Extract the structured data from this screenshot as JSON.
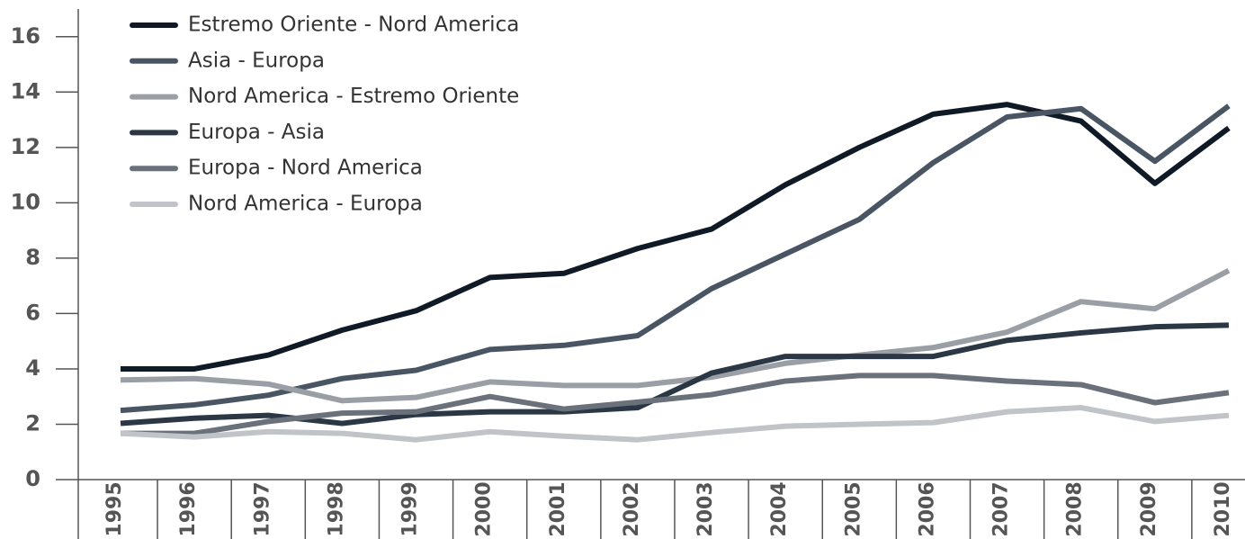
{
  "chart_data": {
    "type": "line",
    "categories": [
      "1995",
      "1996",
      "1997",
      "1998",
      "1999",
      "2000",
      "2001",
      "2002",
      "2003",
      "2004",
      "2005",
      "2006",
      "2007",
      "2008",
      "2009",
      "2010"
    ],
    "series": [
      {
        "name": "Estremo Oriente - Nord America",
        "color": "#0f1a26",
        "values": [
          4.0,
          4.0,
          4.5,
          5.4,
          6.1,
          7.3,
          7.45,
          8.35,
          9.05,
          10.65,
          12.0,
          13.2,
          13.55,
          12.95,
          10.7,
          12.7
        ]
      },
      {
        "name": "Asia - Europa",
        "color": "#4a5563",
        "values": [
          2.5,
          2.7,
          3.05,
          3.65,
          3.95,
          4.7,
          4.85,
          5.2,
          6.9,
          8.15,
          9.4,
          11.45,
          13.1,
          13.4,
          11.5,
          13.5
        ]
      },
      {
        "name": "Nord America - Estremo Oriente",
        "color": "#9a9fa5",
        "values": [
          3.6,
          3.65,
          3.45,
          2.85,
          2.97,
          3.53,
          3.4,
          3.4,
          3.7,
          4.2,
          4.5,
          4.77,
          5.33,
          6.43,
          6.17,
          7.55
        ]
      },
      {
        "name": "Europa - Asia",
        "color": "#2b3744",
        "values": [
          2.03,
          2.22,
          2.32,
          2.03,
          2.35,
          2.45,
          2.45,
          2.6,
          3.85,
          4.45,
          4.45,
          4.45,
          5.03,
          5.3,
          5.52,
          5.58
        ]
      },
      {
        "name": "Europa - Nord America",
        "color": "#6a717a",
        "values": [
          1.67,
          1.67,
          2.1,
          2.4,
          2.45,
          3.0,
          2.55,
          2.8,
          3.07,
          3.56,
          3.76,
          3.76,
          3.56,
          3.43,
          2.78,
          3.14
        ]
      },
      {
        "name": "Nord America - Europa",
        "color": "#c0c3c7",
        "values": [
          1.67,
          1.54,
          1.73,
          1.67,
          1.44,
          1.73,
          1.57,
          1.44,
          1.7,
          1.93,
          2.0,
          2.06,
          2.45,
          2.6,
          2.1,
          2.32
        ]
      }
    ],
    "ylim": [
      0,
      17
    ],
    "yticks": [
      0,
      2,
      4,
      6,
      8,
      10,
      12,
      14,
      16
    ],
    "legend": "upper left"
  }
}
